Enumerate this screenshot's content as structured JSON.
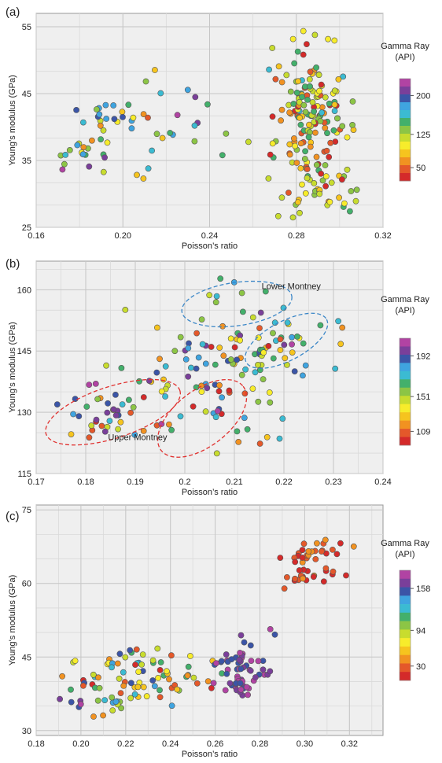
{
  "chart_data": [
    {
      "panel_label": "(a)",
      "type": "scatter",
      "xlabel": "Poisson’s ratio",
      "ylabel": "Young’s modulus (GPa)",
      "xlim": [
        0.16,
        0.32
      ],
      "ylim": [
        25,
        57
      ],
      "xticks": [
        "0.16",
        "0.20",
        "0.24",
        "0.28",
        "0.32"
      ],
      "xtick_values": [
        0.16,
        0.2,
        0.24,
        0.28,
        0.32
      ],
      "yticks": [
        "25",
        "35",
        "45",
        "55"
      ],
      "ytick_values": [
        25,
        35,
        45,
        55
      ],
      "grid": true,
      "colorbar": {
        "title": [
          "Gamma Ray",
          "(API)"
        ],
        "ticks": [
          "200",
          "125",
          "50"
        ],
        "tick_positions": [
          0.165,
          0.545,
          0.87
        ]
      },
      "clusters": [
        {
          "name": "a1",
          "cx": 0.192,
          "cy": 38.7,
          "sx": 0.011,
          "sy": 3.2,
          "n": 48,
          "gr": [
            70,
            210
          ],
          "seed": 11
        },
        {
          "name": "a2",
          "cx": 0.287,
          "cy": 40.5,
          "sx": 0.008,
          "sy": 5.5,
          "n": 175,
          "gr": [
            50,
            150
          ],
          "seed": 23
        },
        {
          "name": "a3",
          "cx": 0.228,
          "cy": 41.0,
          "sx": 0.012,
          "sy": 4.0,
          "n": 14,
          "gr": [
            90,
            200
          ],
          "seed": 37
        },
        {
          "name": "a4",
          "cx": 0.292,
          "cy": 30.0,
          "sx": 0.008,
          "sy": 2.2,
          "n": 22,
          "gr": [
            95,
            140
          ],
          "seed": 41
        }
      ]
    },
    {
      "panel_label": "(b)",
      "type": "scatter",
      "xlabel": "Poisson’s ratio",
      "ylabel": "Young’s modulus (GPa)",
      "xlim": [
        0.17,
        0.24
      ],
      "ylim": [
        115,
        167
      ],
      "xticks": [
        "0.17",
        "0.18",
        "0.19",
        "0.2",
        "0.21",
        "0.22",
        "0.23",
        "0.24"
      ],
      "xtick_values": [
        0.17,
        0.18,
        0.19,
        0.2,
        0.21,
        0.22,
        0.23,
        0.24
      ],
      "yticks": [
        "115",
        "130",
        "145",
        "160"
      ],
      "ytick_values": [
        115,
        130,
        145,
        160
      ],
      "grid": true,
      "colorbar": {
        "title": [
          "Gamma Ray",
          "(API)"
        ],
        "ticks": [
          "192",
          "151",
          "109"
        ],
        "tick_positions": [
          0.165,
          0.545,
          0.87
        ]
      },
      "annotations": [
        {
          "text": "Lower Montney",
          "x": 0.2155,
          "y": 160.2
        },
        {
          "text": "Upper Montney",
          "x": 0.1845,
          "y": 123.2
        }
      ],
      "ellipses": [
        {
          "cx": 0.2105,
          "cy": 156.5,
          "rx": 0.0112,
          "ry": 5.3,
          "angle": -8
        },
        {
          "cx": 0.2205,
          "cy": 147.5,
          "rx": 0.0092,
          "ry": 4.8,
          "angle": -28
        },
        {
          "cx": 0.1855,
          "cy": 130.0,
          "rx": 0.0142,
          "ry": 6.3,
          "angle": -18
        },
        {
          "cx": 0.2035,
          "cy": 128.5,
          "rx": 0.0105,
          "ry": 6.8,
          "angle": -38
        }
      ],
      "clusters": [
        {
          "name": "b1",
          "cx": 0.207,
          "cy": 140.0,
          "sx": 0.009,
          "sy": 8.0,
          "n": 95,
          "gr": [
            112,
            175
          ],
          "seed": 53
        },
        {
          "name": "b2",
          "cx": 0.188,
          "cy": 130.0,
          "sx": 0.006,
          "sy": 4.0,
          "n": 42,
          "gr": [
            112,
            178
          ],
          "seed": 61
        },
        {
          "name": "b3",
          "cx": 0.21,
          "cy": 157.0,
          "sx": 0.005,
          "sy": 3.3,
          "n": 12,
          "gr": [
            140,
            162
          ],
          "seed": 67
        },
        {
          "name": "b4",
          "cx": 0.22,
          "cy": 148.5,
          "sx": 0.005,
          "sy": 2.7,
          "n": 26,
          "gr": [
            118,
            170
          ],
          "seed": 71
        }
      ]
    },
    {
      "panel_label": "(c)",
      "type": "scatter",
      "xlabel": "Poisson’s ratio",
      "ylabel": "Young’s modulus (GPa)",
      "xlim": [
        0.18,
        0.335
      ],
      "ylim": [
        29,
        76
      ],
      "xticks": [
        "0.18",
        "0.20",
        "0.22",
        "0.24",
        "0.26",
        "0.28",
        "0.30",
        "0.32"
      ],
      "xtick_values": [
        0.18,
        0.2,
        0.22,
        0.24,
        0.26,
        0.28,
        0.3,
        0.32
      ],
      "yticks": [
        "30",
        "45",
        "60",
        "75"
      ],
      "ytick_values": [
        30,
        45,
        60,
        75
      ],
      "grid": true,
      "colorbar": {
        "title": [
          "Gamma Ray",
          "(API)"
        ],
        "ticks": [
          "158",
          "94",
          "30"
        ],
        "tick_positions": [
          0.165,
          0.545,
          0.87
        ]
      },
      "clusters": [
        {
          "name": "c1",
          "cx": 0.228,
          "cy": 40.5,
          "sx": 0.015,
          "sy": 3.0,
          "n": 82,
          "gr": [
            30,
            140
          ],
          "seed": 79
        },
        {
          "name": "c2",
          "cx": 0.272,
          "cy": 42.5,
          "sx": 0.006,
          "sy": 2.8,
          "n": 62,
          "gr": [
            130,
            160
          ],
          "seed": 83
        },
        {
          "name": "c3",
          "cx": 0.305,
          "cy": 64.0,
          "sx": 0.008,
          "sy": 3.0,
          "n": 46,
          "gr": [
            30,
            55
          ],
          "seed": 89
        },
        {
          "name": "c4",
          "cx": 0.205,
          "cy": 35.5,
          "sx": 0.008,
          "sy": 1.8,
          "n": 12,
          "gr": [
            80,
            160
          ],
          "seed": 97
        }
      ]
    }
  ],
  "colors": {
    "gr_scale": [
      "#d42a2a",
      "#e4582a",
      "#f19221",
      "#f6c41e",
      "#f7ec2b",
      "#c8dc2e",
      "#8cc545",
      "#43b06b",
      "#3bbbd2",
      "#3fa4e0",
      "#3b55a7",
      "#7a3f9a",
      "#b143a3"
    ],
    "plot_bg": "#efefef",
    "grid": "#c6c6c6",
    "ellipse_red": "#e0312f",
    "ellipse_blue": "#3a86c7"
  }
}
